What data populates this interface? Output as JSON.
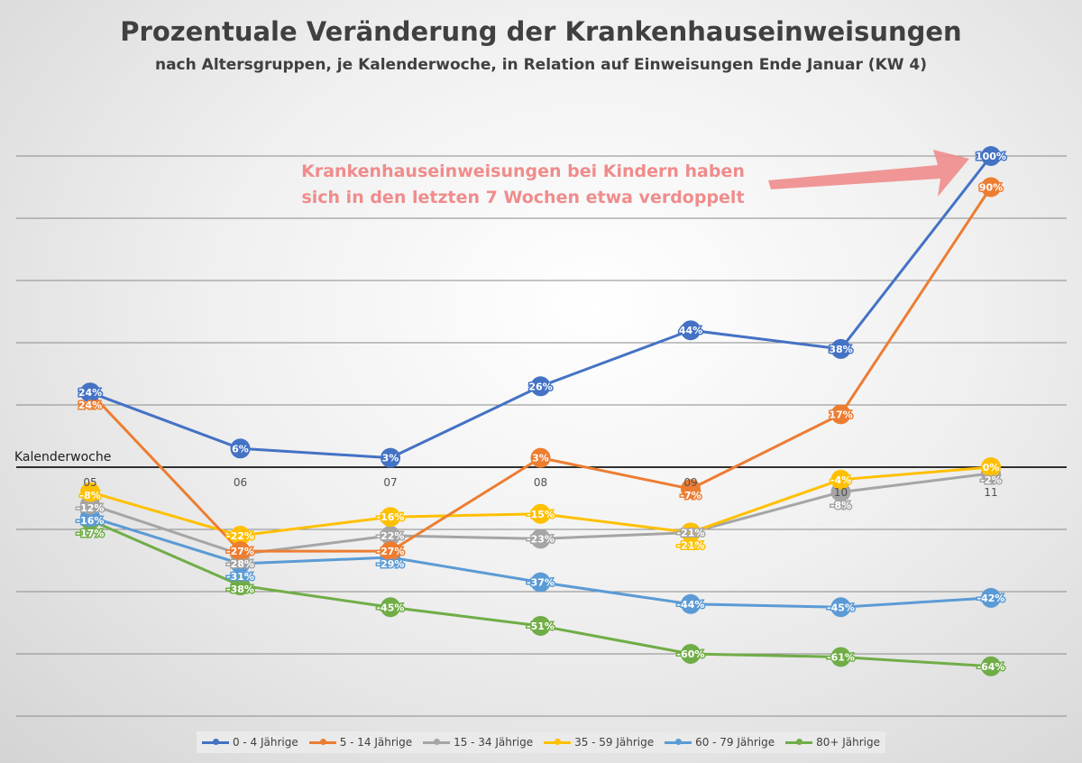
{
  "chart_data": {
    "type": "line",
    "title": "Prozentuale Veränderung der Krankenhauseinweisungen",
    "subtitle": "nach Altersgruppen, je Kalenderwoche, in Relation auf Einweisungen Ende Januar (KW 4)",
    "xlabel": "Kalenderwoche",
    "categories": [
      "05",
      "06",
      "07",
      "08",
      "09",
      "10",
      "11"
    ],
    "ylim": [
      -80,
      100
    ],
    "grid": true,
    "legend": "bottom",
    "annotation": [
      "Krankenhauseinweisungen bei Kindern haben",
      "sich in den letzten 7 Wochen etwa verdoppelt"
    ],
    "series": [
      {
        "name": "0 - 4 Jährige",
        "color": "#4472c4",
        "values": [
          24,
          6,
          3,
          26,
          44,
          38,
          100
        ]
      },
      {
        "name": "5 - 14 Jährige",
        "color": "#ed7d31",
        "values": [
          24,
          -27,
          -27,
          3,
          -7,
          17,
          90
        ]
      },
      {
        "name": "15 - 34 Jährige",
        "color": "#a5a5a5",
        "values": [
          -12,
          -28,
          -22,
          -23,
          -21,
          -8,
          -2
        ]
      },
      {
        "name": "35 - 59 Jährige",
        "color": "#ffc000",
        "values": [
          -8,
          -22,
          -16,
          -15,
          -21,
          -4,
          0
        ]
      },
      {
        "name": "60 - 79 Jährige",
        "color": "#5b9bd5",
        "values": [
          -16,
          -31,
          -29,
          -37,
          -44,
          -45,
          -42
        ]
      },
      {
        "name": "80+ Jährige",
        "color": "#70ad47",
        "values": [
          -17,
          -38,
          -45,
          -51,
          -60,
          -61,
          -64
        ]
      }
    ]
  }
}
